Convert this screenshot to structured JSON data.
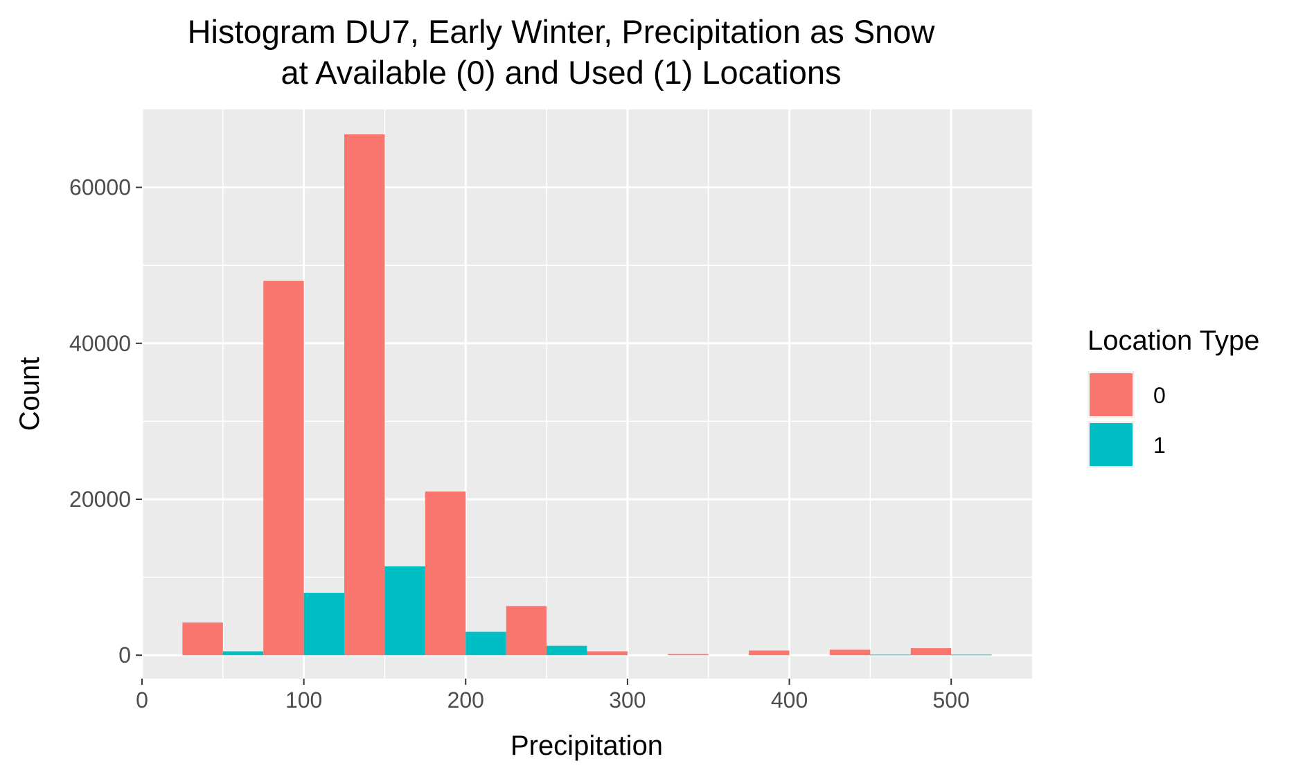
{
  "chart_data": {
    "type": "bar",
    "title_line1": "Histogram DU7, Early Winter, Precipitation as Snow",
    "title_line2": "at Available (0) and Used (1) Locations",
    "xlabel": "Precipitation",
    "ylabel": "Count",
    "xlim": [
      0,
      550
    ],
    "ylim": [
      -3000,
      70000
    ],
    "x_ticks": [
      0,
      100,
      200,
      300,
      400,
      500
    ],
    "x_tick_labels": [
      "0",
      "100",
      "200",
      "300",
      "400",
      "500"
    ],
    "y_ticks": [
      0,
      20000,
      40000,
      60000
    ],
    "y_tick_labels": [
      "0",
      "20000",
      "40000",
      "60000"
    ],
    "grid": true,
    "bin_width": 50,
    "bin_centers": [
      50,
      100,
      150,
      200,
      250,
      300,
      350,
      400,
      450,
      500
    ],
    "legend": {
      "title": "Location Type",
      "position": "right"
    },
    "series": [
      {
        "name": "0",
        "color": "#F8766D",
        "values": [
          4200,
          48000,
          66800,
          21000,
          6300,
          500,
          150,
          600,
          700,
          900
        ]
      },
      {
        "name": "1",
        "color": "#00BFC4",
        "values": [
          500,
          8000,
          11400,
          3000,
          1200,
          0,
          0,
          0,
          80,
          80
        ]
      }
    ]
  }
}
